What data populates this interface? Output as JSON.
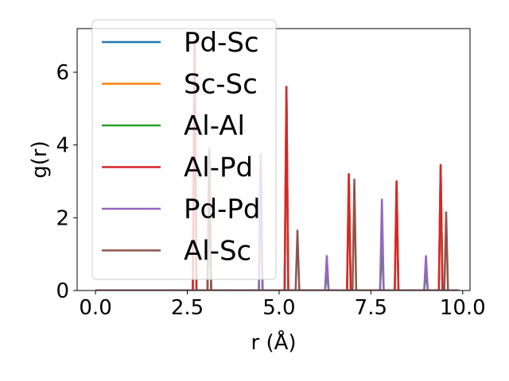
{
  "chart_data": {
    "type": "line",
    "title": "",
    "xlabel": "r (Å)",
    "ylabel": "g(r)",
    "xlim": [
      -0.5,
      10.2
    ],
    "ylim": [
      0,
      7.2
    ],
    "xticks": [
      0.0,
      2.5,
      5.0,
      7.5,
      10.0
    ],
    "xtick_labels": [
      "0.0",
      "2.5",
      "5.0",
      "7.5",
      "10.0"
    ],
    "yticks": [
      0,
      2,
      4,
      6
    ],
    "ytick_labels": [
      "0",
      "2",
      "4",
      "6"
    ],
    "grid": false,
    "legend_position": "upper-left",
    "x_domain": [
      0.0,
      9.9
    ],
    "series": [
      {
        "name": "Pd-Sc",
        "color": "#1f77b4",
        "peaks": [
          {
            "x": 2.7,
            "y": 6.8
          },
          {
            "x": 3.1,
            "y": 3.9
          },
          {
            "x": 4.5,
            "y": 3.7
          },
          {
            "x": 5.2,
            "y": 5.6
          },
          {
            "x": 6.9,
            "y": 3.2
          },
          {
            "x": 8.2,
            "y": 3.0
          },
          {
            "x": 9.4,
            "y": 3.45
          }
        ]
      },
      {
        "name": "Sc-Sc",
        "color": "#ff7f0e",
        "peaks": [
          {
            "x": 2.7,
            "y": 6.8
          },
          {
            "x": 5.2,
            "y": 5.6
          },
          {
            "x": 6.9,
            "y": 3.2
          },
          {
            "x": 8.2,
            "y": 3.0
          },
          {
            "x": 9.4,
            "y": 3.45
          }
        ]
      },
      {
        "name": "Al-Al",
        "color": "#2ca02c",
        "peaks": [
          {
            "x": 3.1,
            "y": 2.9
          },
          {
            "x": 4.5,
            "y": 3.0
          },
          {
            "x": 6.3,
            "y": 0.5
          },
          {
            "x": 7.8,
            "y": 1.25
          },
          {
            "x": 9.0,
            "y": 0.5
          }
        ]
      },
      {
        "name": "Al-Pd",
        "color": "#d62728",
        "peaks": [
          {
            "x": 2.7,
            "y": 6.8
          },
          {
            "x": 5.2,
            "y": 5.6
          },
          {
            "x": 6.9,
            "y": 3.2
          },
          {
            "x": 8.2,
            "y": 3.0
          },
          {
            "x": 9.4,
            "y": 3.45
          }
        ]
      },
      {
        "name": "Pd-Pd",
        "color": "#9467bd",
        "peaks": [
          {
            "x": 3.1,
            "y": 3.9
          },
          {
            "x": 4.5,
            "y": 3.75
          },
          {
            "x": 6.3,
            "y": 0.95
          },
          {
            "x": 7.8,
            "y": 2.5
          },
          {
            "x": 9.0,
            "y": 0.95
          }
        ]
      },
      {
        "name": "Al-Sc",
        "color": "#8c564b",
        "peaks": [
          {
            "x": 3.1,
            "y": 3.9
          },
          {
            "x": 5.5,
            "y": 1.65
          },
          {
            "x": 7.05,
            "y": 3.05
          },
          {
            "x": 9.55,
            "y": 2.15
          }
        ]
      }
    ]
  }
}
